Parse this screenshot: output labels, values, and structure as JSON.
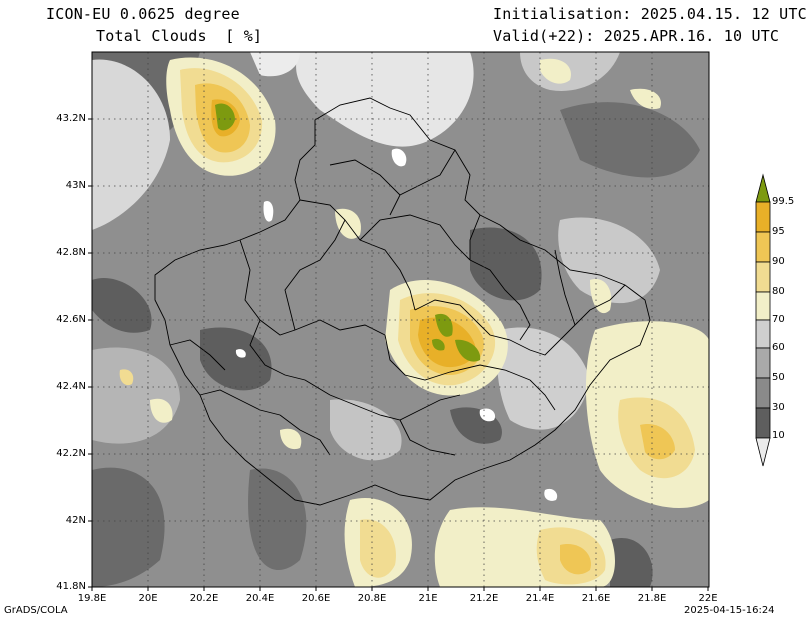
{
  "header": {
    "model_line": "ICON-EU 0.0625 degree",
    "variable_line": "Total Clouds  [ %]",
    "init_line": "Initialisation: 2025.04.15. 12 UTC",
    "valid_line": "Valid(+22): 2025.APR.16. 10 UTC"
  },
  "axes": {
    "y_labels": [
      "43.2N",
      "43N",
      "42.8N",
      "42.6N",
      "42.4N",
      "42.2N",
      "42N",
      "41.8N"
    ],
    "x_labels": [
      "19.8E",
      "20E",
      "20.2E",
      "20.4E",
      "20.6E",
      "20.8E",
      "21E",
      "21.2E",
      "21.4E",
      "21.6E",
      "21.8E",
      "22E"
    ]
  },
  "legend": {
    "labels": [
      "99.5",
      "95",
      "90",
      "80",
      "70",
      "60",
      "50",
      "30",
      "10"
    ],
    "colors": [
      "#7d9a10",
      "#e8b028",
      "#efc655",
      "#f1dc92",
      "#f2efc8",
      "#cfcfcf",
      "#a9a9a9",
      "#8a8a8a",
      "#5e5e5e",
      "#ebebeb"
    ]
  },
  "footer": {
    "left": "GrADS/COLA",
    "right": "2025-04-15-16:24"
  },
  "map_colors": {
    "land_bg": "#9a9a9a",
    "border": "#000000",
    "grid": "#444444"
  }
}
